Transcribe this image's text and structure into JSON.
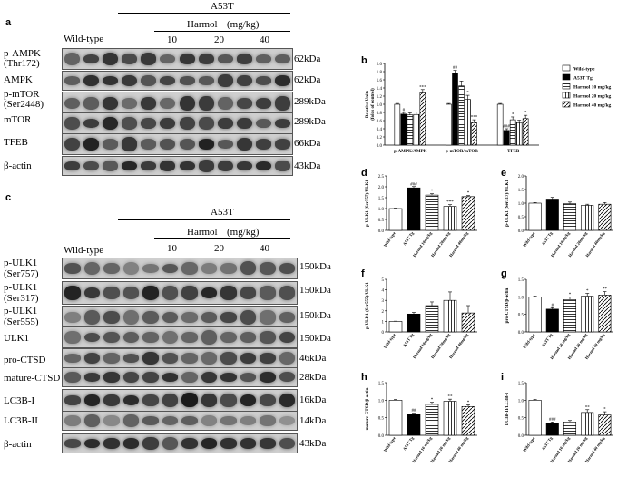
{
  "panel_letters": {
    "a": "a",
    "b": "b",
    "c": "c",
    "d": "d",
    "e": "e",
    "f": "f",
    "g": "g",
    "h": "h",
    "i": "i"
  },
  "panelA": {
    "group_label": "A53T",
    "treatment_label": "Harmol",
    "treatment_unit": "(mg/kg)",
    "wildtype_label": "Wild-type",
    "doses": [
      "10",
      "20",
      "40"
    ],
    "rows": [
      {
        "name": "p-AMPK\n(Thr172)",
        "line1": "p-AMPK",
        "line2": "(Thr172)",
        "kda": "62kDa"
      },
      {
        "name": "AMPK",
        "line1": "AMPK",
        "line2": "",
        "kda": "62kDa"
      },
      {
        "name": "p-mTOR\n(Ser2448)",
        "line1": "p-mTOR",
        "line2": "(Ser2448)",
        "kda": "289kDa"
      },
      {
        "name": "mTOR",
        "line1": "mTOR",
        "line2": "",
        "kda": "289kDa"
      },
      {
        "name": "TFEB",
        "line1": "TFEB",
        "line2": "",
        "kda": "66kDa"
      },
      {
        "name": "β-actin",
        "line1": "β-actin",
        "line2": "",
        "kda": "43kDa"
      }
    ]
  },
  "panelC": {
    "group_label": "A53T",
    "treatment_label": "Harmol",
    "treatment_unit": "(mg/kg)",
    "wildtype_label": "Wild-type",
    "doses": [
      "10",
      "20",
      "40"
    ],
    "rows": [
      {
        "line1": "p-ULK1",
        "line2": "(Ser757)",
        "kda": "150kDa"
      },
      {
        "line1": "p-ULK1",
        "line2": "(Ser317)",
        "kda": "150kDa"
      },
      {
        "line1": "p-ULK1",
        "line2": "(Ser555)",
        "kda": "150kDa"
      },
      {
        "line1": "ULK1",
        "line2": "",
        "kda": "150kDa"
      },
      {
        "line1": "pro-CTSD",
        "line2": "",
        "kda": "46kDa"
      },
      {
        "line1": "mature-CTSD",
        "line2": "",
        "kda": "28kDa"
      },
      {
        "line1": "LC3B-I",
        "line2": "",
        "kda": "16kDa"
      },
      {
        "line1": "LC3B-II",
        "line2": "",
        "kda": "14kDa"
      },
      {
        "line1": "β-actin",
        "line2": "",
        "kda": "43kDa"
      }
    ]
  },
  "colors": {
    "black": "#000000",
    "white": "#ffffff"
  },
  "chart_data": [
    {
      "id": "b",
      "type": "bar",
      "ylabel": "Relative Units\n(folds of control)",
      "ylim": [
        0,
        2.0
      ],
      "yticks": [
        "0.0",
        "0.2",
        "0.4",
        "0.6",
        "0.8",
        "1.0",
        "1.2",
        "1.4",
        "1.6",
        "1.8",
        "2.0"
      ],
      "categories": [
        "p-AMPK/AMPK",
        "p-mTOR/mTOR",
        "TFEB"
      ],
      "legend": [
        "Wild-type",
        "A53T Tg",
        "Harmol 10 mg/kg",
        "Harmol 20 mg/kg",
        "Harmol 40 mg/kg"
      ],
      "legend_position": "right",
      "series_values": [
        [
          1.0,
          0.76,
          0.74,
          0.75,
          1.28
        ],
        [
          1.0,
          1.75,
          1.45,
          1.12,
          0.55
        ],
        [
          1.0,
          0.36,
          0.62,
          0.55,
          0.65
        ]
      ],
      "series_errors": [
        [
          0.02,
          0.04,
          0.05,
          0.06,
          0.08
        ],
        [
          0.02,
          0.08,
          0.12,
          0.1,
          0.07
        ],
        [
          0.02,
          0.04,
          0.07,
          0.06,
          0.08
        ]
      ],
      "annotations": [
        [
          "",
          "#",
          "",
          "",
          "***"
        ],
        [
          "",
          "##",
          "",
          "*",
          "***"
        ],
        [
          "",
          "###",
          "*",
          "",
          "*"
        ]
      ]
    },
    {
      "id": "d",
      "type": "bar",
      "ylabel": "p-ULK1 (Ser757)/ULK1",
      "ylim": [
        0,
        2.5
      ],
      "yticks": [
        "0.0",
        "0.5",
        "1.0",
        "1.5",
        "2.0",
        "2.5"
      ],
      "categories": [
        "Wild-type",
        "A53T Tg",
        "Harmol 10mg/kg",
        "Harmol 20mg/kg",
        "Harmol 40mg/kg"
      ],
      "values": [
        1.0,
        1.95,
        1.62,
        1.1,
        1.55
      ],
      "errors": [
        0.02,
        0.06,
        0.06,
        0.08,
        0.05
      ],
      "annotations": [
        "",
        "###",
        "*",
        "***",
        "*"
      ]
    },
    {
      "id": "e",
      "type": "bar",
      "ylabel": "p-ULK1 (Ser317)/ULK1",
      "ylim": [
        0,
        2.0
      ],
      "yticks": [
        "0.0",
        "0.5",
        "1.0",
        "1.5",
        "2.0"
      ],
      "categories": [
        "Wild-type",
        "A53T Tg",
        "Harmol 10mg/kg",
        "Harmol 20mg/kg",
        "Harmol 40mg/kg"
      ],
      "values": [
        1.0,
        1.15,
        0.98,
        0.92,
        0.96
      ],
      "errors": [
        0.02,
        0.06,
        0.06,
        0.04,
        0.06
      ],
      "annotations": [
        "",
        "",
        "",
        "",
        ""
      ]
    },
    {
      "id": "f",
      "type": "bar",
      "ylabel": "p-ULK1 (Ser555)/ULK1",
      "ylim": [
        0,
        5
      ],
      "yticks": [
        "0",
        "1",
        "2",
        "3",
        "4",
        "5"
      ],
      "categories": [
        "Wild-type",
        "A53T Tg",
        "Harmol 10mg/kg",
        "Harmol 20mg/kg",
        "Harmol 40mg/kg"
      ],
      "values": [
        1.0,
        1.7,
        2.5,
        3.0,
        1.8
      ],
      "errors": [
        0.02,
        0.15,
        0.35,
        0.8,
        0.7
      ],
      "annotations": [
        "",
        "",
        "",
        "",
        ""
      ]
    },
    {
      "id": "g",
      "type": "bar",
      "ylabel": "pro-CTSD/β-actin",
      "ylim": [
        0,
        1.5
      ],
      "yticks": [
        "0.0",
        "0.5",
        "1.0",
        "1.5"
      ],
      "categories": [
        "Wild-type",
        "A53T Tg",
        "Harmol 10 mg/kg",
        "Harmol 20 mg/kg",
        "Harmol 40 mg/kg"
      ],
      "values": [
        1.0,
        0.65,
        0.92,
        1.02,
        1.05
      ],
      "errors": [
        0.02,
        0.04,
        0.08,
        0.08,
        0.1
      ],
      "annotations": [
        "",
        "#",
        "*",
        "*",
        "**"
      ]
    },
    {
      "id": "h",
      "type": "bar",
      "ylabel": "mature-CTSD/β-actin",
      "ylim": [
        0,
        1.5
      ],
      "yticks": [
        "0.0",
        "0.5",
        "1.0",
        "1.5"
      ],
      "categories": [
        "Wild-type",
        "A53T Tg",
        "Harmol 10 mg/kg",
        "Harmol 20 mg/kg",
        "Harmol 40 mg/kg"
      ],
      "values": [
        1.0,
        0.6,
        0.88,
        0.97,
        0.82
      ],
      "errors": [
        0.02,
        0.03,
        0.06,
        0.06,
        0.05
      ],
      "annotations": [
        "",
        "##",
        "*",
        "**",
        "*"
      ]
    },
    {
      "id": "i",
      "type": "bar",
      "ylabel": "LC3B-II/LC3B-I",
      "ylim": [
        0,
        1.5
      ],
      "yticks": [
        "0.0",
        "0.5",
        "1.0",
        "1.5"
      ],
      "categories": [
        "Wild-type",
        "A53T Tg",
        "Harmol 10 mg/kg",
        "Harmol 20 mg/kg",
        "Harmol 40 mg/kg"
      ],
      "values": [
        1.0,
        0.35,
        0.38,
        0.65,
        0.58
      ],
      "errors": [
        0.02,
        0.03,
        0.04,
        0.08,
        0.09
      ],
      "annotations": [
        "",
        "###",
        "",
        "**",
        "*"
      ]
    }
  ]
}
